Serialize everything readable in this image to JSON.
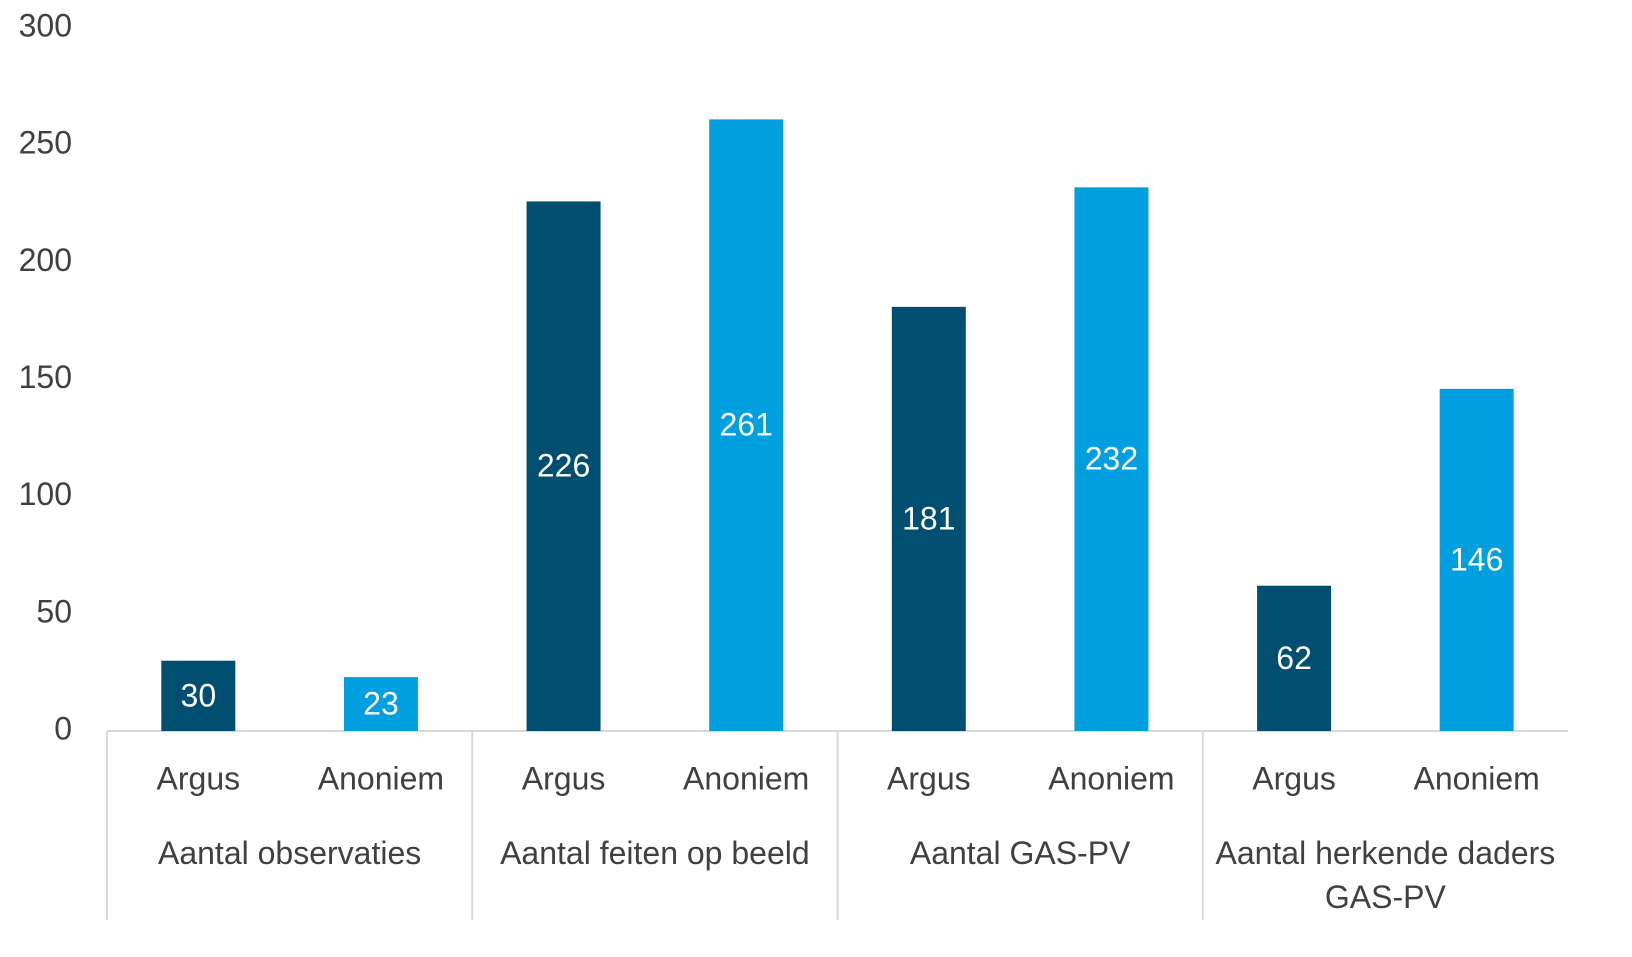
{
  "chart_data": {
    "type": "bar",
    "categories": [
      "Argus",
      "Anoniem",
      "Argus",
      "Anoniem",
      "Argus",
      "Anoniem",
      "Argus",
      "Anoniem"
    ],
    "groups": [
      "Aantal observaties",
      "Aantal feiten op beeld",
      "Aantal GAS-PV",
      "Aantal herkende daders GAS-PV"
    ],
    "values": [
      30,
      23,
      226,
      261,
      181,
      232,
      62,
      146
    ],
    "colors": [
      "#004f71",
      "#009fe0",
      "#004f71",
      "#009fe0",
      "#004f71",
      "#009fe0",
      "#004f71",
      "#009fe0"
    ],
    "ylim": [
      0,
      300
    ],
    "yticks": [
      0,
      50,
      100,
      150,
      200,
      250,
      300
    ],
    "grid": false
  }
}
